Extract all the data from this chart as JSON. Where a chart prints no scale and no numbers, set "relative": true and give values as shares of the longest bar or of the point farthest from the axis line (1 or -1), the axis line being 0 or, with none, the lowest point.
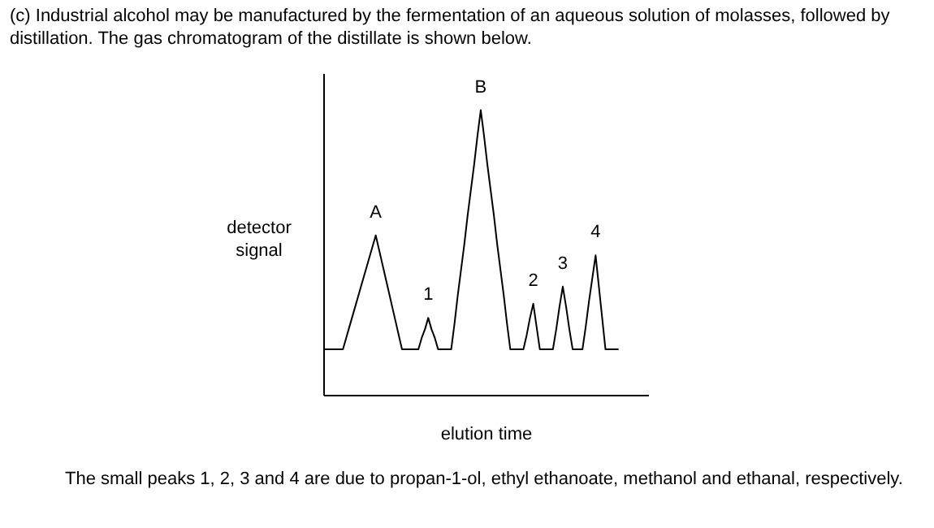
{
  "chart_data": {
    "type": "line",
    "relative": true,
    "title": "(c)  Industrial alcohol may be manufactured by the fermentation of an aqueous solution of molasses, followed by distillation. The gas chromatogram of the distillate is shown below.",
    "xlabel": "elution time",
    "ylabel": "detector signal",
    "color": "#000000",
    "annotations": [
      {
        "text": "A"
      },
      {
        "text": "1"
      },
      {
        "text": "B"
      },
      {
        "text": "2"
      },
      {
        "text": "3"
      },
      {
        "text": "4"
      },
      "The small peaks 1, 2, 3 and 4 are due to propan-1-ol, ethyl ethanoate, methanol and ethanal, respectively."
    ],
    "categories": [
      null,
      null,
      null,
      null,
      null,
      null,
      null,
      null,
      null,
      null,
      null,
      null,
      null,
      null,
      null,
      null,
      null,
      null,
      null,
      null,
      null,
      null,
      null,
      null,
      null,
      null,
      null,
      null,
      null,
      null,
      null,
      null,
      null,
      null,
      null,
      null,
      null,
      null,
      null,
      null,
      null,
      null,
      null,
      null,
      null,
      null,
      null,
      null,
      null,
      null,
      null,
      null,
      null,
      null,
      null,
      null,
      null,
      null,
      null,
      null,
      null,
      null,
      null,
      null,
      null,
      null,
      null,
      null,
      null,
      null,
      null,
      null,
      null,
      null,
      null,
      null,
      null,
      null,
      null,
      null,
      null,
      null,
      null,
      null,
      null,
      null,
      null,
      null,
      null,
      null,
      null,
      null,
      null,
      null,
      null,
      null,
      null,
      null,
      null,
      null
    ],
    "values": [
      0.16,
      0.16,
      0.16,
      0.16,
      0.16,
      0.16,
      0.16,
      0.2,
      0.24,
      0.28,
      0.32,
      0.36,
      0.4,
      0.44,
      0.48,
      0.52,
      0.56,
      0.51,
      0.46,
      0.41,
      0.36,
      0.31,
      0.26,
      0.21,
      0.16,
      0.16,
      0.16,
      0.16,
      0.16,
      0.16,
      0.2,
      0.23,
      0.27,
      0.23,
      0.2,
      0.16,
      0.16,
      0.16,
      0.16,
      0.16,
      0.25,
      0.35,
      0.44,
      0.53,
      0.63,
      0.72,
      0.81,
      0.91,
      1,
      0.91,
      0.81,
      0.72,
      0.63,
      0.53,
      0.44,
      0.35,
      0.25,
      0.16,
      0.16,
      0.16,
      0.16,
      0.16,
      0.21,
      0.27,
      0.32,
      0.24,
      0.16,
      0.16,
      0.16,
      0.16,
      0.16,
      0.23,
      0.31,
      0.38,
      0.31,
      0.23,
      0.16,
      0.16,
      0.16,
      0.16,
      0.24,
      0.33,
      0.41,
      0.49,
      0.38,
      0.27,
      0.16,
      0.16,
      0.16,
      0.16,
      0.16,
      null,
      null,
      null,
      null,
      null,
      null,
      null,
      null,
      null
    ]
  }
}
